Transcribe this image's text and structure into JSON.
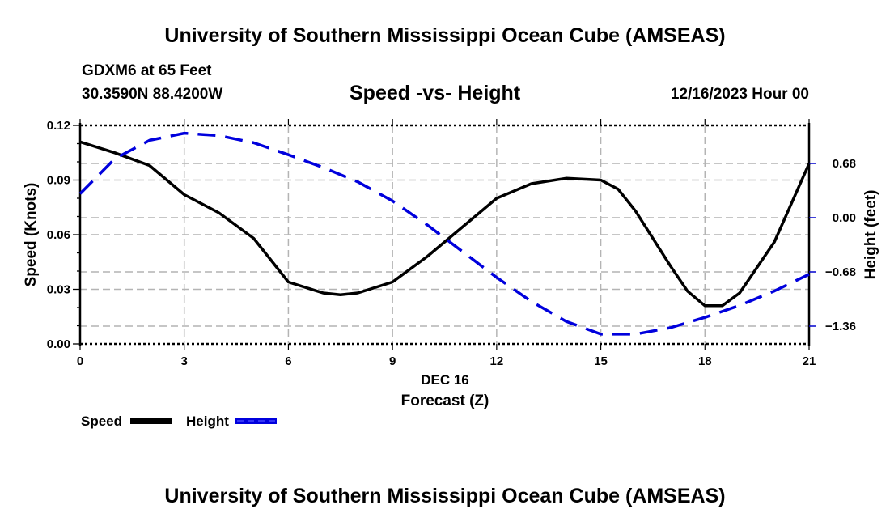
{
  "header": {
    "title_top": "University of Southern Mississippi Ocean Cube (AMSEAS)",
    "title_bottom": "University of Southern Mississippi Ocean Cube (AMSEAS)",
    "station": "GDXM6 at 65 Feet",
    "coordinates": "30.3590N  88.4200W",
    "datetime": "12/16/2023 Hour 00"
  },
  "chart_data": {
    "type": "line",
    "title": "Speed -vs- Height",
    "xlabel": "Forecast (Z)",
    "xlabel_date": "DEC 16",
    "ylabel": "Speed (Knots)",
    "y2label": "Height (feet)",
    "xlim": [
      0,
      21
    ],
    "ylim": [
      0,
      0.12
    ],
    "y2lim": [
      -1.6,
      1.1
    ],
    "xticks": [
      0,
      3,
      6,
      9,
      12,
      15,
      18,
      21
    ],
    "xtick_labels": [
      "0",
      "3",
      "6",
      "9",
      "12",
      "15",
      "18",
      "21"
    ],
    "yticks": [
      0,
      0.03,
      0.06,
      0.09,
      0.12
    ],
    "ytick_labels": [
      "0.00",
      "0.03",
      "0.06",
      "0.09",
      "0.12"
    ],
    "y2ticks": [
      0.68,
      0,
      -0.68,
      -1.36
    ],
    "y2tick_labels": [
      "0.68",
      "0.00",
      "−0.68",
      "−1.36"
    ],
    "grid": true,
    "legend_position": "bottom-left",
    "series": [
      {
        "name": "Speed",
        "axis": "left",
        "color": "#000000",
        "style": "solid",
        "x": [
          0,
          1,
          2,
          3,
          4,
          5,
          6,
          7,
          7.5,
          8,
          9,
          10,
          11,
          12,
          13,
          14,
          15,
          15.5,
          16,
          17,
          17.5,
          18,
          18.5,
          19,
          20,
          21
        ],
        "values": [
          0.111,
          0.105,
          0.098,
          0.082,
          0.072,
          0.058,
          0.034,
          0.028,
          0.027,
          0.028,
          0.034,
          0.048,
          0.064,
          0.08,
          0.088,
          0.091,
          0.09,
          0.085,
          0.073,
          0.043,
          0.029,
          0.021,
          0.021,
          0.028,
          0.056,
          0.099
        ]
      },
      {
        "name": "Height",
        "axis": "right",
        "color": "#0000dd",
        "style": "dashed",
        "x": [
          0,
          1,
          2,
          3,
          4,
          5,
          6,
          7,
          8,
          9,
          10,
          11,
          12,
          13,
          14,
          15,
          16,
          17,
          18,
          19,
          20,
          21
        ],
        "values": [
          0.3,
          0.74,
          0.97,
          1.06,
          1.03,
          0.94,
          0.79,
          0.63,
          0.45,
          0.21,
          -0.09,
          -0.42,
          -0.75,
          -1.05,
          -1.3,
          -1.46,
          -1.46,
          -1.38,
          -1.25,
          -1.1,
          -0.92,
          -0.71
        ]
      }
    ]
  }
}
